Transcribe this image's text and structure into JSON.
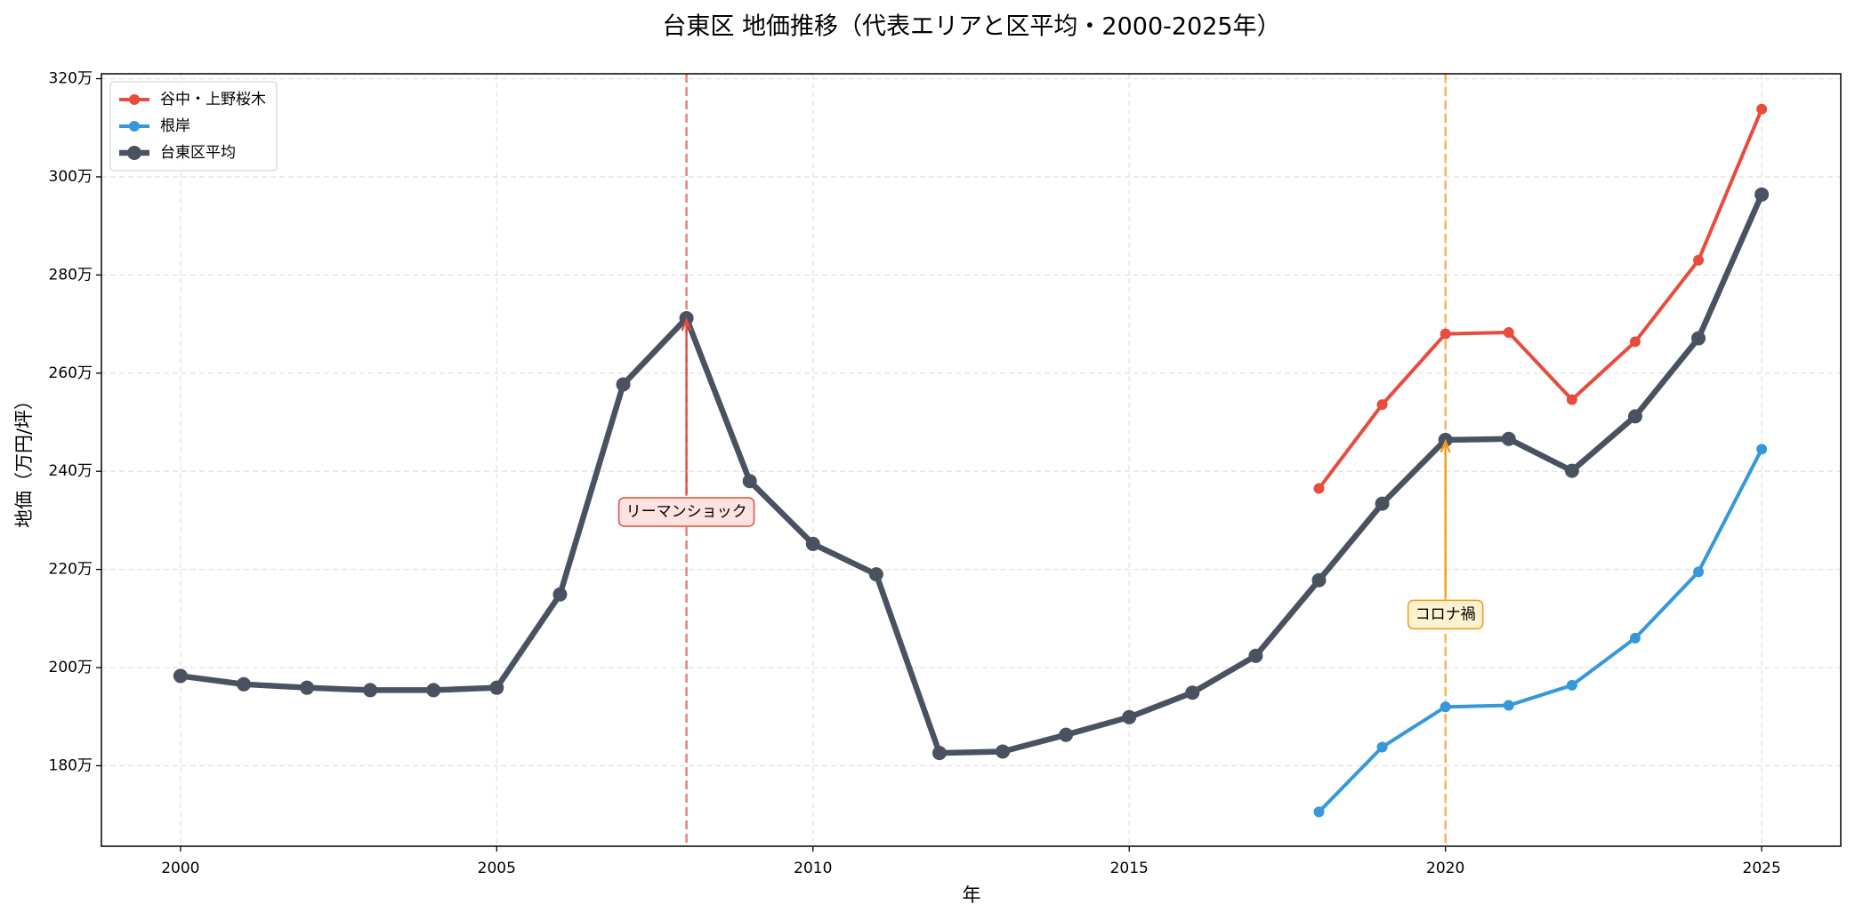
{
  "chart_data": {
    "type": "line",
    "title": "台東区 地価推移（代表エリアと区平均・2000-2025年）",
    "x_label": "年",
    "y_label": "地価（万円/坪）",
    "x": [
      2000,
      2001,
      2002,
      2003,
      2004,
      2005,
      2006,
      2007,
      2008,
      2009,
      2010,
      2011,
      2012,
      2013,
      2014,
      2015,
      2016,
      2017,
      2018,
      2019,
      2020,
      2021,
      2022,
      2023,
      2024,
      2025
    ],
    "series": [
      {
        "name": "谷中・上野桜木",
        "color": "#e74c3c",
        "width": 4,
        "marker": 6,
        "values": [
          null,
          null,
          null,
          null,
          null,
          null,
          null,
          null,
          null,
          null,
          null,
          null,
          null,
          null,
          null,
          null,
          null,
          null,
          236.5,
          253.6,
          268.0,
          268.3,
          254.6,
          266.4,
          283.0,
          313.8
        ]
      },
      {
        "name": "根岸",
        "color": "#3498db",
        "width": 4,
        "marker": 6,
        "values": [
          null,
          null,
          null,
          null,
          null,
          null,
          null,
          null,
          null,
          null,
          null,
          null,
          null,
          null,
          null,
          null,
          null,
          null,
          170.6,
          183.8,
          192.0,
          192.3,
          196.4,
          206.0,
          219.5,
          244.5
        ]
      },
      {
        "name": "台東区平均",
        "color": "#4a5261",
        "width": 6.5,
        "marker": 8,
        "values": [
          198.3,
          196.6,
          195.9,
          195.4,
          195.4,
          195.9,
          214.9,
          257.7,
          271.2,
          238.0,
          225.2,
          219.0,
          182.6,
          182.9,
          186.3,
          189.9,
          194.9,
          202.4,
          217.8,
          233.4,
          246.4,
          246.6,
          240.1,
          251.2,
          267.1,
          296.4
        ]
      }
    ],
    "xlim": [
      1998.75,
      2026.25
    ],
    "ylim": [
      163.6,
      321
    ],
    "xticks": [
      2000,
      2005,
      2010,
      2015,
      2020,
      2025
    ],
    "yticks": [
      {
        "value": 180,
        "label": "180万"
      },
      {
        "value": 200,
        "label": "200万"
      },
      {
        "value": 220,
        "label": "220万"
      },
      {
        "value": 240,
        "label": "240万"
      },
      {
        "value": 260,
        "label": "260万"
      },
      {
        "value": 280,
        "label": "280万"
      },
      {
        "value": 300,
        "label": "300万"
      },
      {
        "value": 320,
        "label": "320万"
      }
    ],
    "grid": true,
    "legend": "upper left",
    "annotations": [
      {
        "text": "リーマンショック",
        "x": 2008,
        "y": 271.2,
        "text_y": 231.7,
        "color": "#e74c3c",
        "box": "#fde2e2"
      },
      {
        "text": "コロナ禍",
        "x": 2020,
        "y": 246.4,
        "text_y": 210.8,
        "color": "#f39c12",
        "box": "#fdf2cf"
      }
    ]
  }
}
